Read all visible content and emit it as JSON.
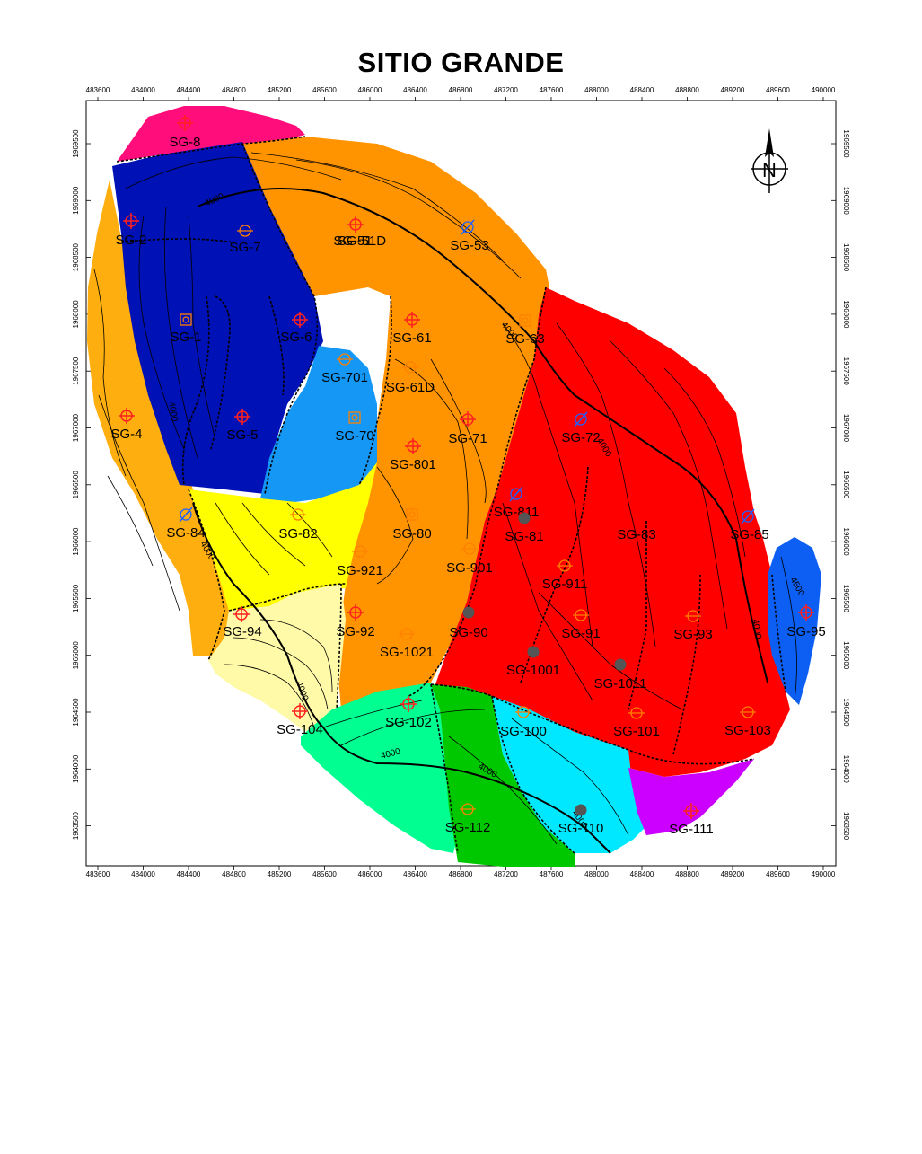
{
  "title": "SITIO GRANDE",
  "x_ticks": [
    "483600",
    "484000",
    "484400",
    "484800",
    "485200",
    "485600",
    "486000",
    "486400",
    "486800",
    "487200",
    "487600",
    "488000",
    "488400",
    "488800",
    "489200",
    "489600",
    "490000"
  ],
  "y_ticks": [
    "1969500",
    "1969000",
    "1968500",
    "1968000",
    "1967500",
    "1967000",
    "1966500",
    "1966000",
    "1965500",
    "1965000",
    "1964500",
    "1964000",
    "1963500"
  ],
  "north_arrow_label": "N",
  "contour_labels": [
    "4000",
    "4000",
    "4000",
    "4000",
    "4000",
    "4000",
    "4000",
    "4000",
    "4500",
    "4000",
    "4000"
  ],
  "wells": [
    {
      "name": "SG-8"
    },
    {
      "name": "SG-2"
    },
    {
      "name": "SG-7"
    },
    {
      "name": "SG-51"
    },
    {
      "name": "SG-51D"
    },
    {
      "name": "SG-53"
    },
    {
      "name": "SG-1"
    },
    {
      "name": "SG-6"
    },
    {
      "name": "SG-61"
    },
    {
      "name": "SG-63"
    },
    {
      "name": "SG-701"
    },
    {
      "name": "SG-61D"
    },
    {
      "name": "SG-4"
    },
    {
      "name": "SG-5"
    },
    {
      "name": "SG-70"
    },
    {
      "name": "SG-71"
    },
    {
      "name": "SG-72"
    },
    {
      "name": "SG-801"
    },
    {
      "name": "SG-811"
    },
    {
      "name": "SG-84"
    },
    {
      "name": "SG-82"
    },
    {
      "name": "SG-80"
    },
    {
      "name": "SG-81"
    },
    {
      "name": "SG-83"
    },
    {
      "name": "SG-85"
    },
    {
      "name": "SG-921"
    },
    {
      "name": "SG-901"
    },
    {
      "name": "SG-911"
    },
    {
      "name": "SG-95"
    },
    {
      "name": "SG-94"
    },
    {
      "name": "SG-92"
    },
    {
      "name": "SG-90"
    },
    {
      "name": "SG-91"
    },
    {
      "name": "SG-93"
    },
    {
      "name": "SG-1021"
    },
    {
      "name": "SG-1001"
    },
    {
      "name": "SG-1011"
    },
    {
      "name": "SG-104"
    },
    {
      "name": "SG-102"
    },
    {
      "name": "SG-100"
    },
    {
      "name": "SG-101"
    },
    {
      "name": "SG-103"
    },
    {
      "name": "SG-112"
    },
    {
      "name": "SG-110"
    },
    {
      "name": "SG-111"
    }
  ]
}
